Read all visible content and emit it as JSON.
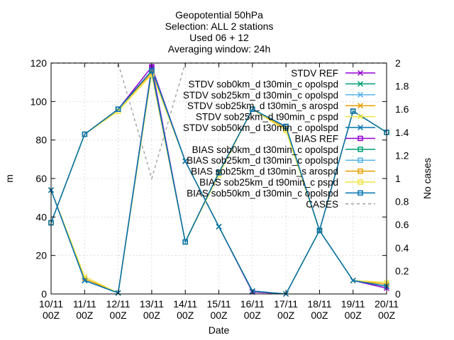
{
  "chart_data": {
    "type": "line",
    "title": [
      "Geopotential 50hPa",
      "Selection: ALL      2 stations",
      "Used 06 + 12",
      "Averaging window: 24h"
    ],
    "xlabel": "Date",
    "ylabel": "m",
    "y2label": "No cases",
    "ylim": [
      0,
      120
    ],
    "y2lim": [
      0,
      2
    ],
    "yticks": [
      0,
      20,
      40,
      60,
      80,
      100,
      120
    ],
    "y2ticks": [
      "0",
      "0.2",
      "0.4",
      "0.6",
      "0.8",
      "1",
      "1.2",
      "1.4",
      "1.6",
      "1.8",
      "2"
    ],
    "categories": [
      "10/11",
      "11/11",
      "12/11",
      "13/11",
      "14/11",
      "15/11",
      "16/11",
      "17/11",
      "18/11",
      "19/11",
      "20/11"
    ],
    "category_suffix": "00Z",
    "grid": true,
    "legend_position": "top-right",
    "series": [
      {
        "name": "STDV REF",
        "marker": "x",
        "color": "#9400d3",
        "values": [
          54,
          7,
          0.5,
          118,
          69,
          35,
          1,
          0,
          33,
          7,
          3
        ]
      },
      {
        "name": "STDV sob0km_d t30min_c opolspd",
        "marker": "x",
        "color": "#009e73",
        "values": [
          54,
          7,
          0.5,
          117,
          69,
          35,
          1.5,
          0,
          33,
          7,
          4
        ]
      },
      {
        "name": "STDV sob25km_d t30min_c opolspd",
        "marker": "x",
        "color": "#56b4e9",
        "values": [
          54,
          7,
          0.5,
          117,
          69,
          35,
          1.5,
          0,
          33,
          7,
          4
        ]
      },
      {
        "name": "STDV sob25km_d t30min_s arospd",
        "marker": "x",
        "color": "#e69f00",
        "values": [
          54,
          8,
          0.5,
          116,
          69,
          35,
          1.5,
          0,
          33,
          7,
          5
        ]
      },
      {
        "name": "STDV sob25km_d t90min_c pspd",
        "marker": "x",
        "color": "#f0e442",
        "values": [
          54,
          9,
          0.5,
          115,
          69,
          35,
          1.5,
          0,
          33,
          7,
          6
        ]
      },
      {
        "name": "STDV sob50km_d t30min_c opolspd",
        "marker": "x",
        "color": "#0072b2",
        "values": [
          54,
          7,
          0.5,
          117,
          69,
          35,
          1.5,
          0,
          33,
          7,
          4
        ]
      },
      {
        "name": "BIAS REF",
        "marker": "square",
        "color": "#9400d3",
        "values": [
          37,
          83,
          96,
          118,
          27,
          63,
          96,
          87,
          33,
          95,
          84
        ]
      },
      {
        "name": "BIAS sob0km_d t30min_c opolspd",
        "marker": "square",
        "color": "#009e73",
        "values": [
          37,
          83,
          96,
          116,
          27,
          63,
          96,
          87,
          33,
          95,
          84
        ]
      },
      {
        "name": "BIAS sob25km_d t30min_c opolspd",
        "marker": "square",
        "color": "#56b4e9",
        "values": [
          37,
          83,
          96,
          116,
          27,
          63,
          96,
          87,
          33,
          95,
          84
        ]
      },
      {
        "name": "BIAS sob25km_d t30min_s arospd",
        "marker": "square",
        "color": "#e69f00",
        "values": [
          37,
          83,
          96,
          115,
          27,
          63,
          96,
          86,
          33,
          95,
          84
        ]
      },
      {
        "name": "BIAS sob25km_d t90min_c pspd",
        "marker": "square",
        "color": "#f0e442",
        "values": [
          37,
          83,
          95,
          114,
          27,
          62,
          96,
          85,
          33,
          95,
          84
        ]
      },
      {
        "name": "BIAS sob50km_d t30min_c opolspd",
        "marker": "square",
        "color": "#0072b2",
        "values": [
          37,
          83,
          96,
          116,
          27,
          63,
          96,
          87,
          33,
          95,
          84
        ]
      },
      {
        "name": "CASES",
        "marker": "none",
        "color": "#a0a0a0",
        "dashed": true,
        "axis": "y2",
        "values": [
          2,
          2,
          2,
          1,
          2,
          2,
          2,
          2,
          2,
          2,
          2
        ]
      }
    ]
  }
}
